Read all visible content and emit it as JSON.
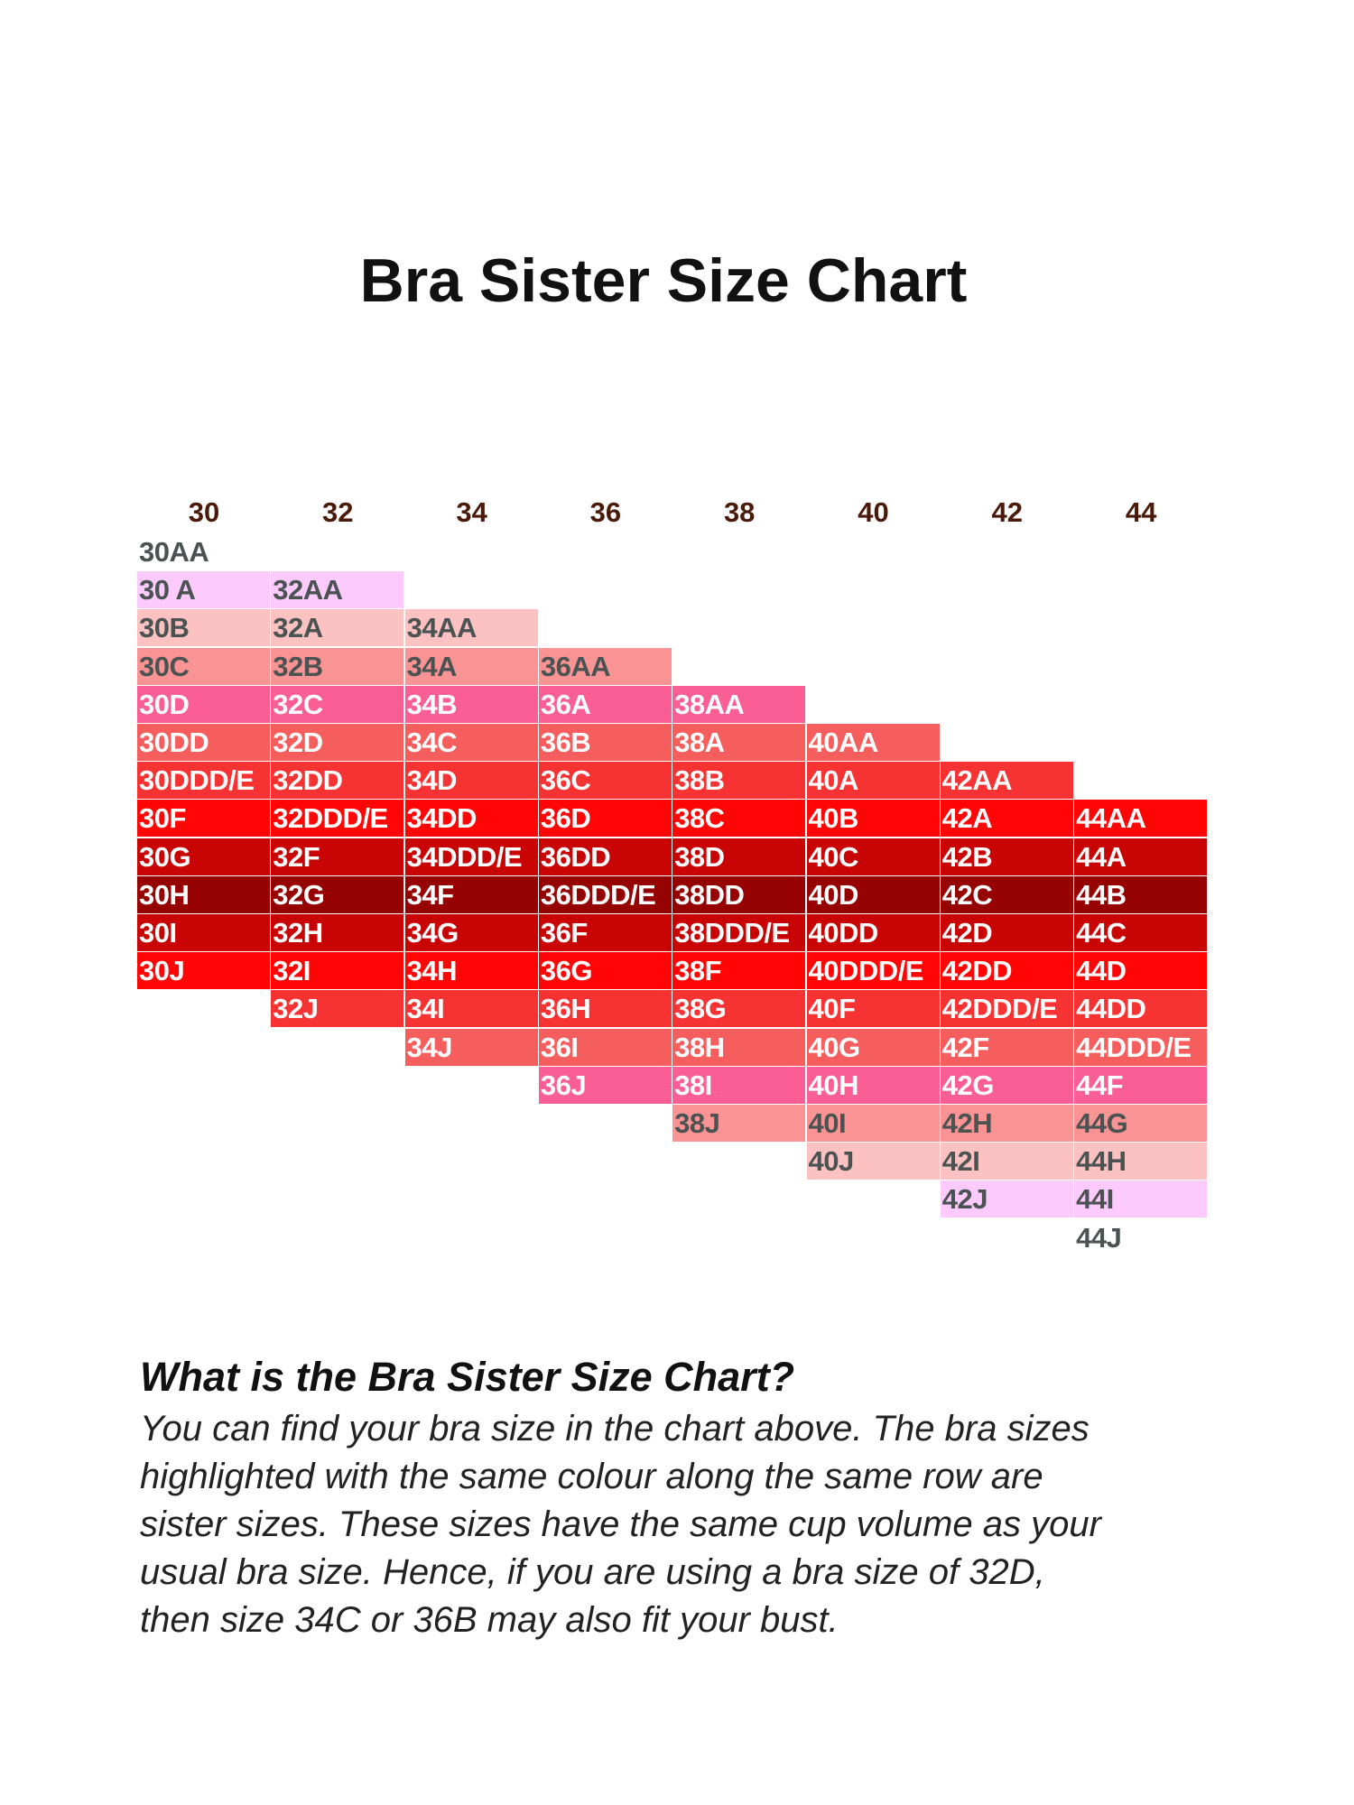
{
  "chart_data": {
    "type": "table",
    "title": "Bra Sister Size Chart",
    "band_sizes": [
      "30",
      "32",
      "34",
      "36",
      "38",
      "40",
      "42",
      "44"
    ],
    "columns": [
      [
        "30AA",
        "30 A",
        "30B",
        "30C",
        "30D",
        "30DD",
        "30DDD/E",
        "30F",
        "30G",
        "30H",
        "30I",
        "30J"
      ],
      [
        "32AA",
        "32A",
        "32B",
        "32C",
        "32D",
        "32DD",
        "32DDD/E",
        "32F",
        "32G",
        "32H",
        "32I",
        "32J"
      ],
      [
        "34AA",
        "34A",
        "34B",
        "34C",
        "34D",
        "34DD",
        "34DDD/E",
        "34F",
        "34G",
        "34H",
        "34I",
        "34J"
      ],
      [
        "36AA",
        "36A",
        "36B",
        "36C",
        "36D",
        "36DD",
        "36DDD/E",
        "36F",
        "36G",
        "36H",
        "36I",
        "36J"
      ],
      [
        "38AA",
        "38A",
        "38B",
        "38C",
        "38D",
        "38DD",
        "38DDD/E",
        "38F",
        "38G",
        "38H",
        "38I",
        "38J"
      ],
      [
        "40AA",
        "40A",
        "40B",
        "40C",
        "40D",
        "40DD",
        "40DDD/E",
        "40F",
        "40G",
        "40H",
        "40I",
        "40J"
      ],
      [
        "42AA",
        "42A",
        "42B",
        "42C",
        "42D",
        "42DD",
        "42DDD/E",
        "42F",
        "42G",
        "42H",
        "42I",
        "42J"
      ],
      [
        "44AA",
        "44A",
        "44B",
        "44C",
        "44D",
        "44DD",
        "44DDD/E",
        "44F",
        "44G",
        "44H",
        "44I",
        "44J"
      ]
    ],
    "row_colors": [
      "#ffffff",
      "#fccafc",
      "#fcc2c2",
      "#fa9494",
      "#fb5e94",
      "#f65e5e",
      "#f73232",
      "#ff0505",
      "#c80404",
      "#960202",
      "#c80404",
      "#ff0505",
      "#f73232",
      "#f65e5e",
      "#fb5e94",
      "#fa9494",
      "#fcc2c2",
      "#fccafc",
      "#ffffff"
    ],
    "dark_text_rows": [
      0,
      1,
      2,
      3,
      15,
      16,
      17,
      18
    ]
  },
  "description": {
    "heading": "What is the Bra Sister Size Chart?",
    "lines": [
      "You can find your bra size in the chart above. The bra sizes",
      "highlighted with the same colour along the same row are",
      "sister sizes. These sizes have the same cup volume as your",
      "usual bra size. Hence, if you are using a bra size of 32D,",
      "then size 34C or 36B may also fit your bust."
    ]
  }
}
